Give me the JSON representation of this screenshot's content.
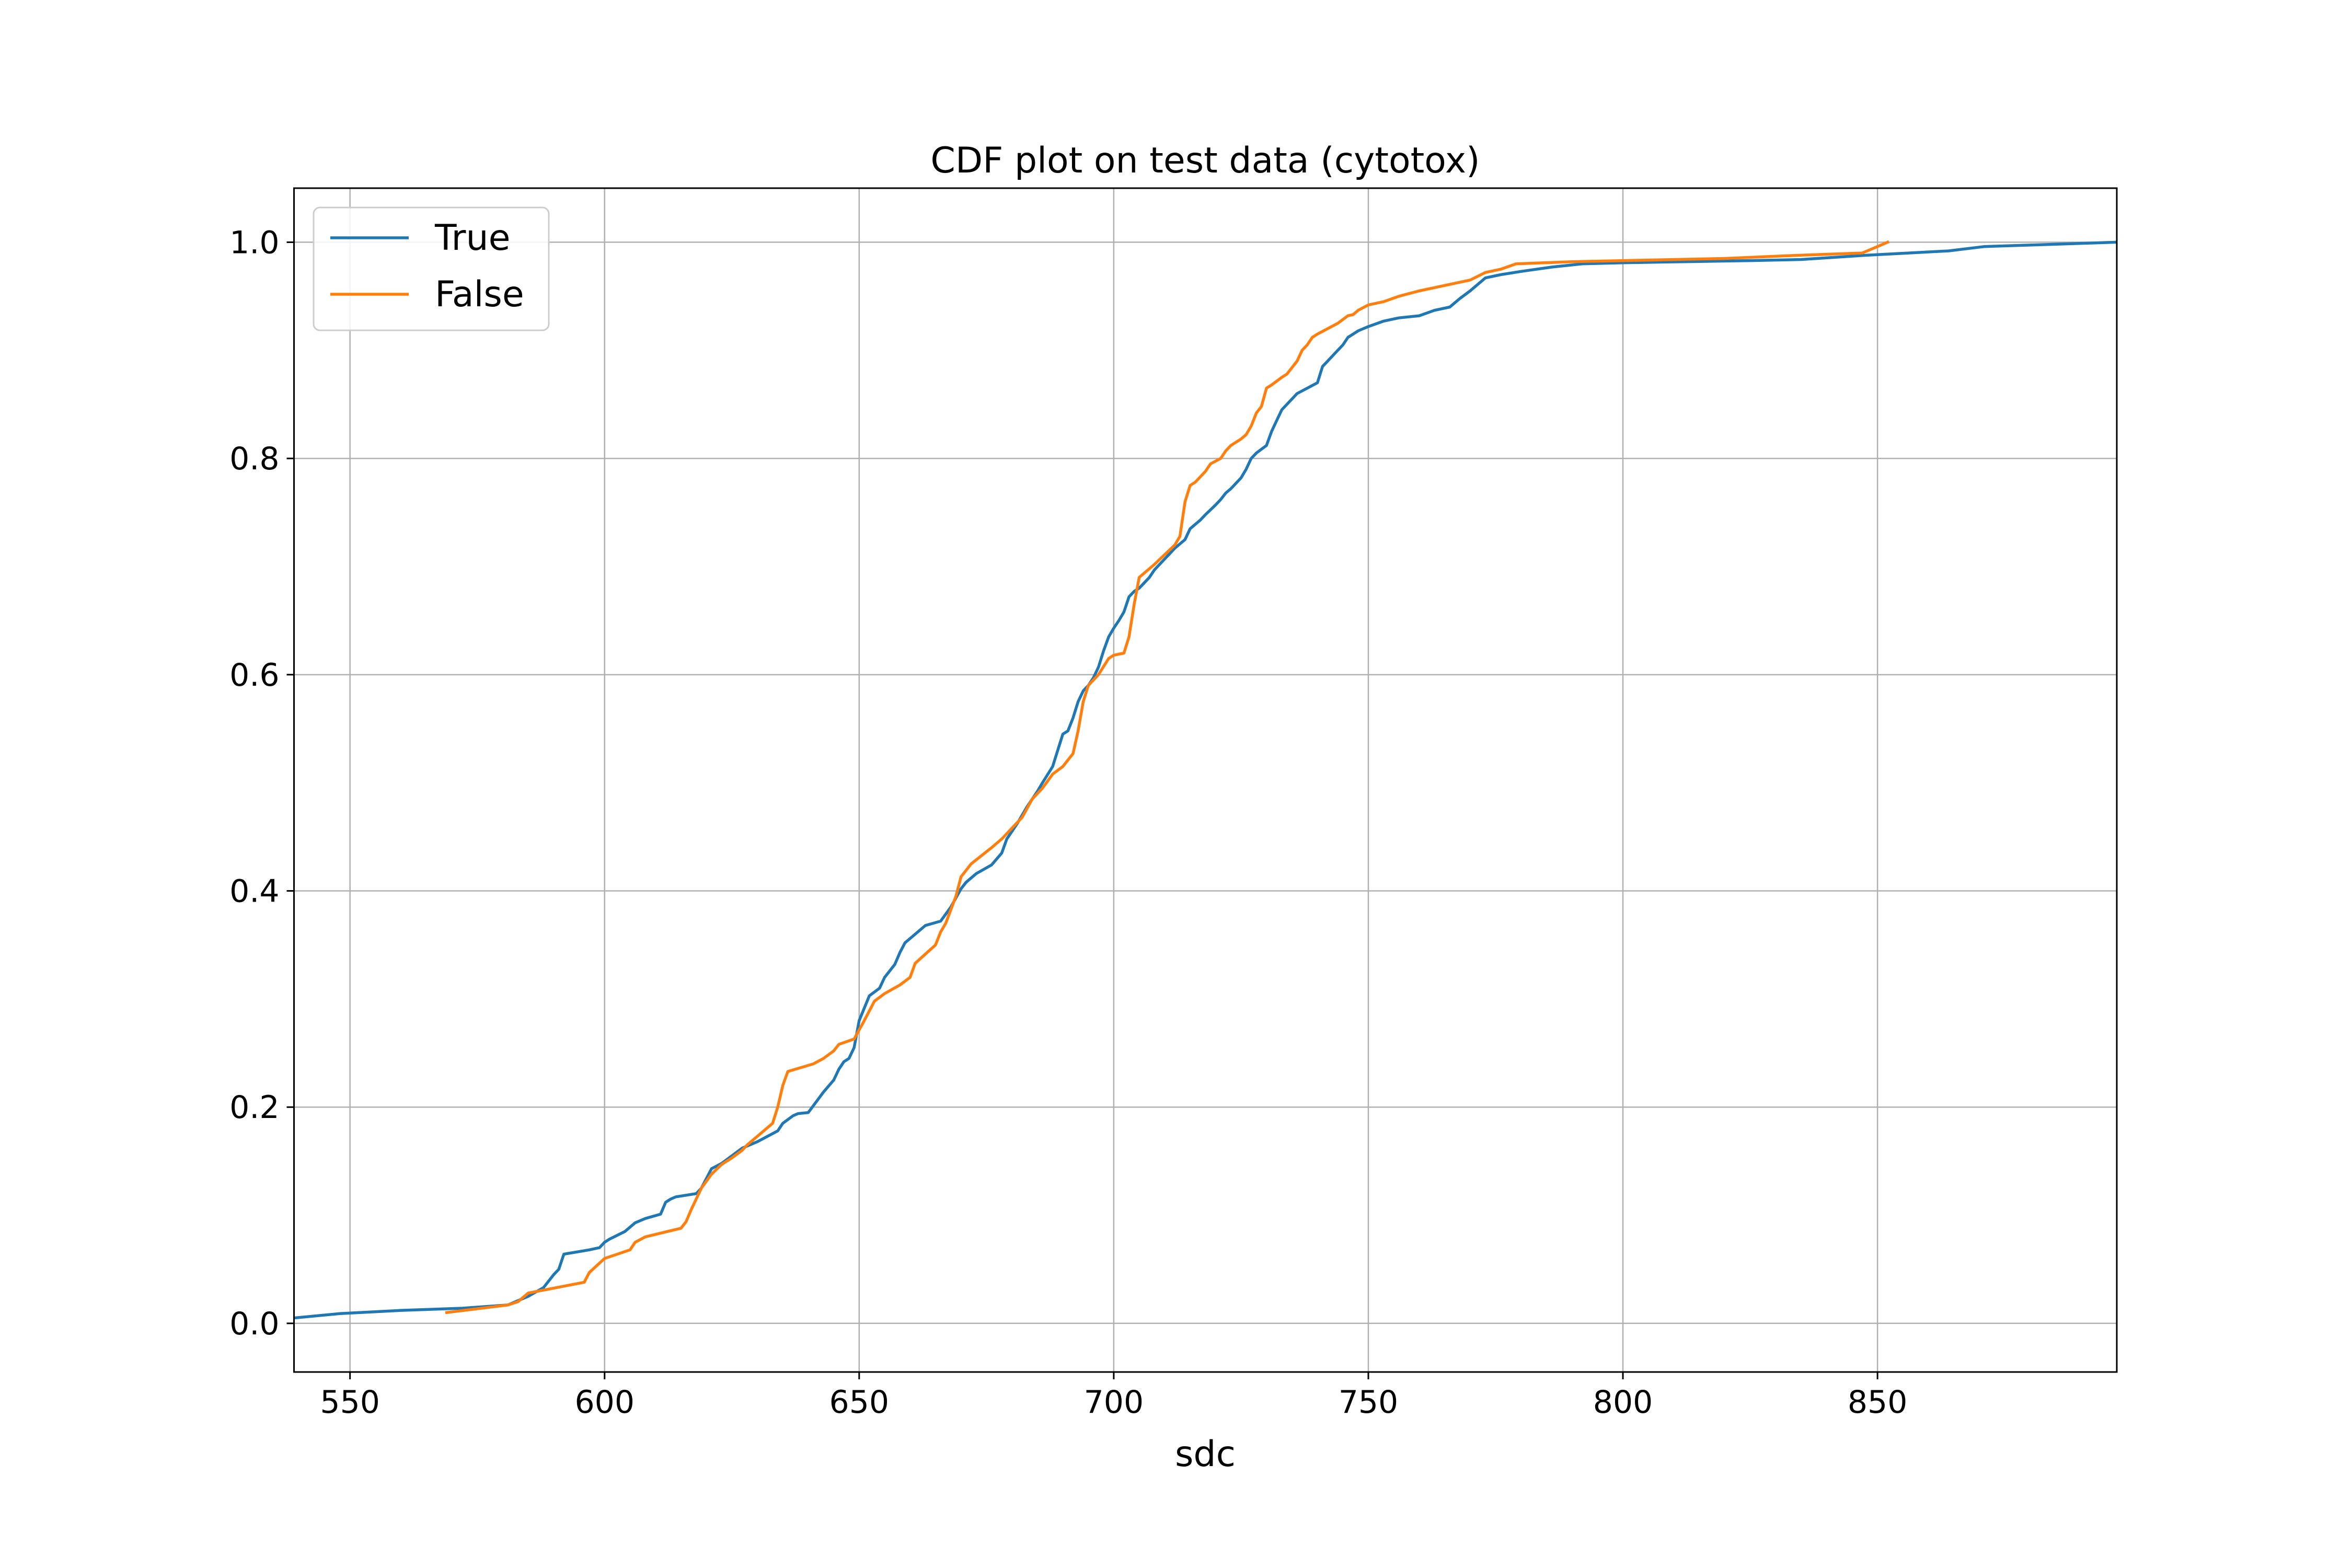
{
  "chart_data": {
    "type": "line",
    "title": "CDF plot on test data (cytotox)",
    "xlabel": "sdc",
    "ylabel": "",
    "xlim": [
      539,
      897
    ],
    "ylim": [
      -0.045,
      1.05
    ],
    "xticks": [
      550,
      600,
      650,
      700,
      750,
      800,
      850
    ],
    "yticks": [
      0.0,
      0.2,
      0.4,
      0.6,
      0.8,
      1.0
    ],
    "xtick_labels": [
      "550",
      "600",
      "650",
      "700",
      "750",
      "800",
      "850"
    ],
    "ytick_labels": [
      "0.0",
      "0.2",
      "0.4",
      "0.6",
      "0.8",
      "1.0"
    ],
    "grid": true,
    "legend_position": "top-left",
    "series": [
      {
        "name": "True",
        "color": "#1f77b4",
        "x": [
          539,
          548,
          560,
          572,
          581,
          585,
          588,
          590,
          591,
          592,
          597,
          599,
          600,
          601,
          604,
          606,
          608,
          611,
          612,
          613,
          614,
          618,
          619,
          621,
          623,
          627,
          630,
          632,
          634,
          635,
          637,
          638,
          640,
          643,
          645,
          646,
          647,
          648,
          649,
          650,
          652,
          654,
          655,
          657,
          658,
          659,
          661,
          663,
          666,
          668,
          670,
          671,
          673,
          676,
          678,
          679,
          681,
          683,
          685,
          686,
          688,
          689,
          690,
          691,
          692,
          693,
          694,
          695,
          696,
          697,
          698,
          699,
          700,
          701,
          702,
          703,
          704,
          705,
          707,
          708,
          710,
          711,
          712,
          714,
          715,
          717,
          718,
          720,
          721,
          722,
          723,
          725,
          726,
          727,
          728,
          730,
          731,
          732,
          733,
          735,
          736,
          738,
          740,
          741,
          742,
          744,
          745,
          746,
          748,
          749,
          750,
          753,
          756,
          760,
          763,
          766,
          768,
          770,
          773,
          776,
          780,
          786,
          792,
          800,
          812,
          825,
          835,
          848,
          864,
          871,
          897
        ],
        "y": [
          0.005,
          0.009,
          0.012,
          0.014,
          0.017,
          0.025,
          0.033,
          0.045,
          0.05,
          0.064,
          0.068,
          0.07,
          0.075,
          0.078,
          0.085,
          0.093,
          0.097,
          0.101,
          0.112,
          0.115,
          0.117,
          0.12,
          0.125,
          0.143,
          0.148,
          0.162,
          0.168,
          0.173,
          0.178,
          0.185,
          0.192,
          0.194,
          0.195,
          0.214,
          0.225,
          0.235,
          0.242,
          0.245,
          0.255,
          0.28,
          0.303,
          0.31,
          0.32,
          0.332,
          0.343,
          0.352,
          0.36,
          0.368,
          0.372,
          0.385,
          0.402,
          0.408,
          0.416,
          0.424,
          0.435,
          0.448,
          0.462,
          0.478,
          0.492,
          0.5,
          0.515,
          0.53,
          0.545,
          0.548,
          0.56,
          0.575,
          0.585,
          0.59,
          0.597,
          0.607,
          0.622,
          0.635,
          0.643,
          0.65,
          0.658,
          0.672,
          0.677,
          0.68,
          0.69,
          0.697,
          0.707,
          0.712,
          0.717,
          0.725,
          0.735,
          0.743,
          0.748,
          0.757,
          0.762,
          0.768,
          0.772,
          0.782,
          0.79,
          0.8,
          0.805,
          0.812,
          0.825,
          0.835,
          0.845,
          0.855,
          0.86,
          0.865,
          0.87,
          0.885,
          0.89,
          0.9,
          0.905,
          0.912,
          0.918,
          0.92,
          0.922,
          0.927,
          0.93,
          0.932,
          0.937,
          0.94,
          0.948,
          0.955,
          0.967,
          0.97,
          0.973,
          0.977,
          0.98,
          0.981,
          0.982,
          0.983,
          0.984,
          0.988,
          0.992,
          0.996,
          1.0
        ]
      },
      {
        "name": "False",
        "color": "#ff7f0e",
        "x": [
          569,
          581,
          583,
          585,
          596,
          597,
          600,
          605,
          606,
          608,
          615,
          616,
          617,
          618,
          619,
          621,
          623,
          625,
          627,
          628,
          631,
          633,
          634,
          635,
          636,
          641,
          643,
          645,
          646,
          649,
          651,
          653,
          655,
          658,
          660,
          661,
          665,
          666,
          667,
          669,
          670,
          672,
          676,
          678,
          680,
          682,
          684,
          686,
          688,
          690,
          692,
          693,
          694,
          695,
          697,
          699,
          700,
          702,
          703,
          704,
          705,
          708,
          712,
          713,
          714,
          715,
          716,
          718,
          719,
          721,
          722,
          723,
          725,
          726,
          727,
          728,
          729,
          730,
          731,
          733,
          734,
          736,
          737,
          738,
          739,
          740,
          742,
          744,
          746,
          747,
          748,
          750,
          753,
          756,
          760,
          765,
          770,
          773,
          776,
          779,
          790,
          800,
          820,
          835,
          847,
          852
        ],
        "y": [
          0.01,
          0.017,
          0.02,
          0.028,
          0.038,
          0.047,
          0.06,
          0.068,
          0.075,
          0.08,
          0.088,
          0.094,
          0.105,
          0.115,
          0.125,
          0.138,
          0.147,
          0.153,
          0.16,
          0.165,
          0.177,
          0.185,
          0.2,
          0.22,
          0.233,
          0.24,
          0.245,
          0.252,
          0.258,
          0.263,
          0.28,
          0.298,
          0.305,
          0.313,
          0.32,
          0.333,
          0.35,
          0.362,
          0.37,
          0.395,
          0.413,
          0.425,
          0.44,
          0.448,
          0.458,
          0.468,
          0.485,
          0.495,
          0.508,
          0.515,
          0.527,
          0.548,
          0.575,
          0.59,
          0.6,
          0.615,
          0.618,
          0.62,
          0.635,
          0.665,
          0.69,
          0.702,
          0.72,
          0.728,
          0.76,
          0.775,
          0.778,
          0.788,
          0.795,
          0.8,
          0.807,
          0.812,
          0.818,
          0.822,
          0.83,
          0.842,
          0.848,
          0.865,
          0.868,
          0.875,
          0.878,
          0.89,
          0.9,
          0.905,
          0.912,
          0.915,
          0.92,
          0.925,
          0.932,
          0.933,
          0.937,
          0.942,
          0.945,
          0.95,
          0.955,
          0.96,
          0.965,
          0.972,
          0.975,
          0.98,
          0.982,
          0.983,
          0.985,
          0.988,
          0.99,
          1.0
        ]
      }
    ]
  }
}
